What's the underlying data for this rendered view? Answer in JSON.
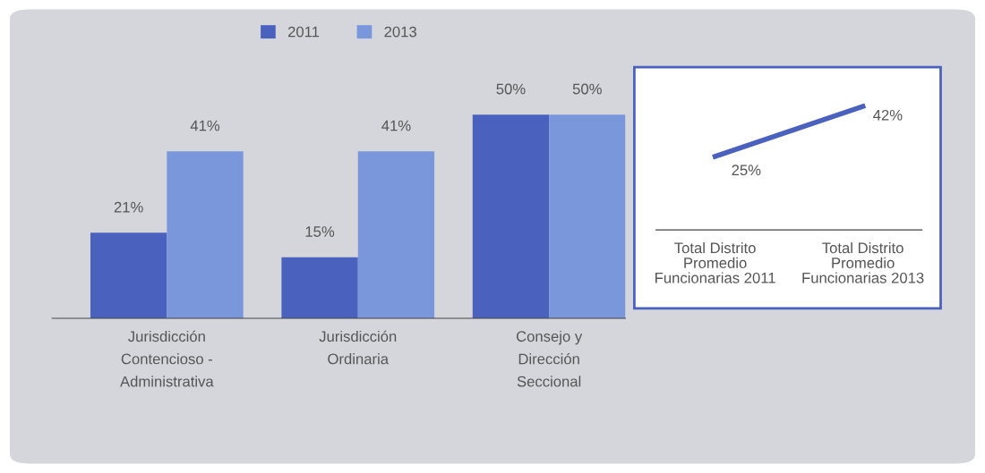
{
  "chart_data": [
    {
      "type": "bar",
      "categories": [
        "Jurisdicción\nContencioso -\nAdministrativa",
        "Jurisdicción\nOrdinaria",
        "Consejo y\nDirección\nSeccional"
      ],
      "series": [
        {
          "name": "2011",
          "color": "#4a62be",
          "values": [
            21,
            15,
            50
          ],
          "value_labels": [
            "21%",
            "15%",
            "50%"
          ]
        },
        {
          "name": "2013",
          "color": "#7b97dc",
          "values": [
            41,
            41,
            50
          ],
          "value_labels": [
            "41%",
            "41%",
            "50%"
          ]
        }
      ],
      "legend": "top"
    },
    {
      "type": "line",
      "categories": [
        "Total Distrito\nPromedio\nFuncionarias 2011",
        "Total Distrito\nPromedio\nFuncionarias 2013"
      ],
      "series": [
        {
          "color": "#4a62be",
          "values": [
            25,
            42
          ],
          "value_labels": [
            "25%",
            "42%"
          ]
        }
      ],
      "marker": "none",
      "line_style": "solid"
    }
  ]
}
